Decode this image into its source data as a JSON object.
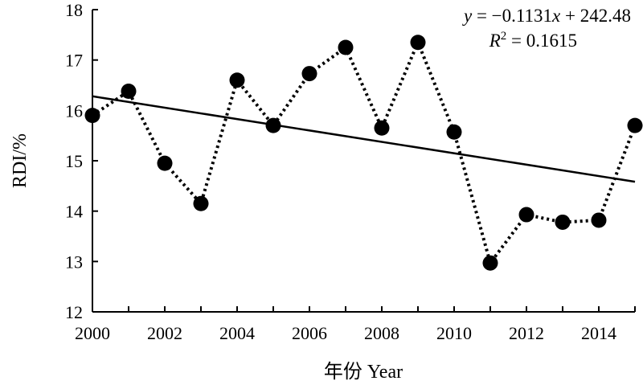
{
  "chart_data": {
    "type": "scatter",
    "xlabel": "年份 Year",
    "ylabel": "RDI/%",
    "xlim": [
      2000,
      2015
    ],
    "ylim": [
      12,
      18
    ],
    "xticks": [
      "2000",
      "2002",
      "2004",
      "2006",
      "2008",
      "2010",
      "2012",
      "2014"
    ],
    "yticks": [
      "12",
      "13",
      "14",
      "15",
      "16",
      "17",
      "18"
    ],
    "grid": false,
    "series": [
      {
        "x": [
          2000,
          2001,
          2002,
          2003,
          2004,
          2005,
          2006,
          2007,
          2008,
          2009,
          2010,
          2011,
          2012,
          2013,
          2014,
          2015
        ],
        "values": [
          15.9,
          16.38,
          14.95,
          14.15,
          16.6,
          15.7,
          16.73,
          17.25,
          15.65,
          17.35,
          15.57,
          12.97,
          13.93,
          13.78,
          13.82,
          15.7
        ]
      }
    ],
    "trendline": {
      "slope": -0.1131,
      "intercept": 242.48
    },
    "annotations": {
      "equation": {
        "y": "y",
        "mid": " = −0.1131",
        "x": "x",
        "rest": " + 242.48"
      },
      "r2": {
        "r": "R",
        "sup": "2",
        "rest": " = 0.1615"
      }
    }
  }
}
